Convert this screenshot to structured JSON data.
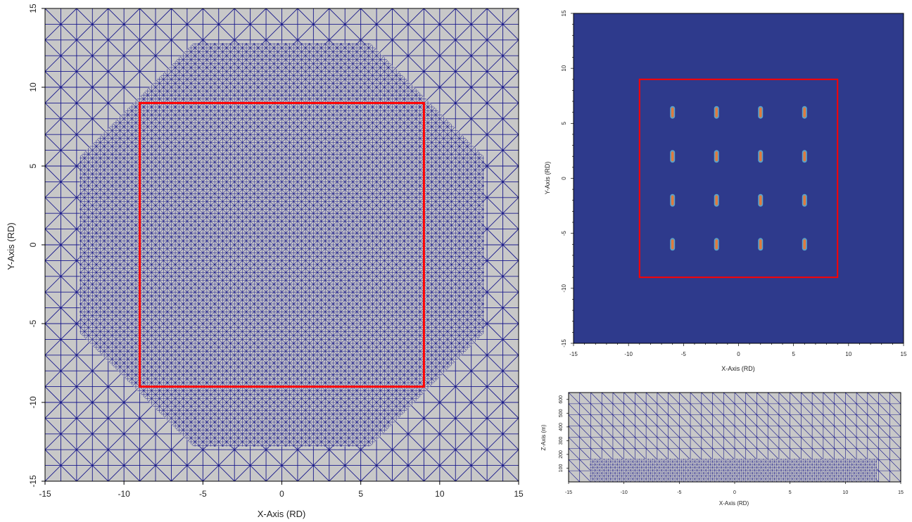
{
  "panels": {
    "mesh_plan": {
      "xlabel": "X-Axis (RD)",
      "ylabel": "Y-Axis (RD)",
      "xticks": [
        "-15",
        "-10",
        "-5",
        "0",
        "5",
        "10",
        "15"
      ],
      "yticks": [
        "-15",
        "-10",
        "-5",
        "0",
        "5",
        "10",
        "15"
      ],
      "xlim": [
        -15,
        15
      ],
      "ylim": [
        -15,
        15
      ],
      "refined_region": "octagon",
      "highlight_box": {
        "xmin": -9,
        "xmax": 9,
        "ymin": -9,
        "ymax": 9
      }
    },
    "well_field": {
      "xlabel": "X-Axis (RD)",
      "ylabel": "Y-Axis (RD)",
      "xticks": [
        "-15",
        "-10",
        "-5",
        "0",
        "5",
        "10",
        "15"
      ],
      "yticks": [
        "-15",
        "-10",
        "-5",
        "0",
        "5",
        "10",
        "15"
      ],
      "xlim": [
        -15,
        15
      ],
      "ylim": [
        -15,
        15
      ],
      "highlight_box": {
        "xmin": -9,
        "xmax": 9,
        "ymin": -9,
        "ymax": 9
      },
      "well_x": [
        -6,
        -2,
        2,
        6
      ],
      "well_y": [
        6,
        2,
        -2,
        -6
      ]
    },
    "mesh_section": {
      "xlabel": "X-Axis (RD)",
      "ylabel": "Z-Axis (m)",
      "xticks": [
        "-15",
        "-10",
        "-5",
        "0",
        "5",
        "10",
        "15"
      ],
      "zticks": [
        "100",
        "200",
        "300",
        "400",
        "500",
        "600"
      ],
      "xlim": [
        -15,
        15
      ],
      "zlim": [
        0,
        650
      ]
    }
  },
  "colors": {
    "mesh_bg": "#c8c8c8",
    "mesh_line": "#1a1a8c",
    "field_bg": "#2e3a8c",
    "highlight": "#ff0000",
    "well_core": "#e07a3c",
    "well_halo": "#5aa0c8"
  }
}
